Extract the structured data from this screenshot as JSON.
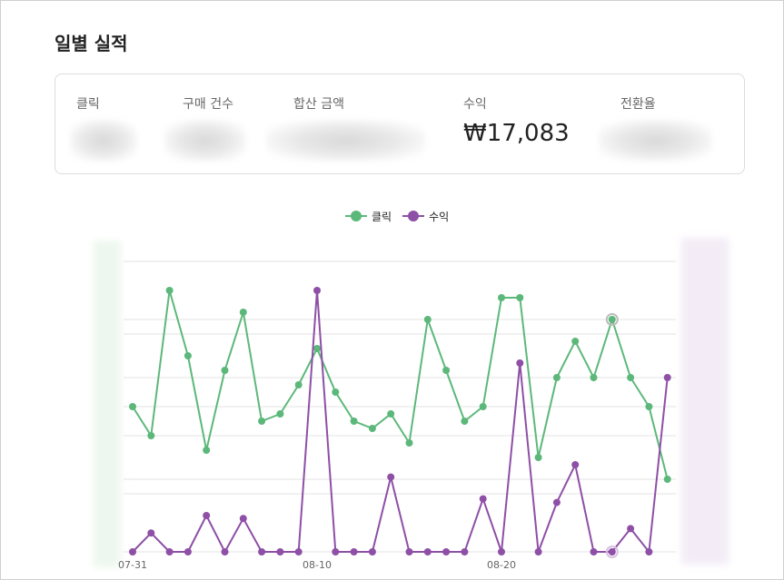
{
  "page": {
    "title": "일별 실적"
  },
  "summary": {
    "metrics": [
      {
        "label": "클릭",
        "value": "",
        "blurred": true
      },
      {
        "label": "구매 건수",
        "value": "",
        "blurred": true
      },
      {
        "label": "합산 금액",
        "value": "",
        "blurred": true
      },
      {
        "label": "수익",
        "value": "₩17,083",
        "blurred": false
      },
      {
        "label": "전환율",
        "value": "",
        "blurred": true
      }
    ]
  },
  "legend": {
    "items": [
      {
        "label": "클릭",
        "color": "#5cb87a"
      },
      {
        "label": "수익",
        "color": "#8e4fa6"
      }
    ]
  },
  "chart_data": {
    "type": "line",
    "xlabel": "",
    "ylabel": "",
    "x_ticks": [
      "07-31",
      "08-10",
      "08-20"
    ],
    "grid": true,
    "legend_position": "top-center",
    "series": [
      {
        "name": "클릭",
        "color": "#5cb87a",
        "values": [
          20,
          16,
          36,
          27,
          14,
          25,
          33,
          18,
          19,
          23,
          28,
          22,
          18,
          17,
          19,
          15,
          32,
          25,
          18,
          20,
          35,
          35,
          13,
          24,
          29,
          24,
          32,
          24,
          20,
          10
        ]
      },
      {
        "name": "수익",
        "color": "#8e4fa6",
        "values": [
          0,
          2.6,
          0,
          0,
          5,
          0,
          4.6,
          0,
          0,
          0,
          36,
          0,
          0,
          0,
          10.3,
          0,
          0,
          0,
          0,
          7.3,
          0,
          26,
          0,
          6.8,
          12,
          0,
          0,
          3.2,
          0,
          24
        ]
      }
    ]
  }
}
